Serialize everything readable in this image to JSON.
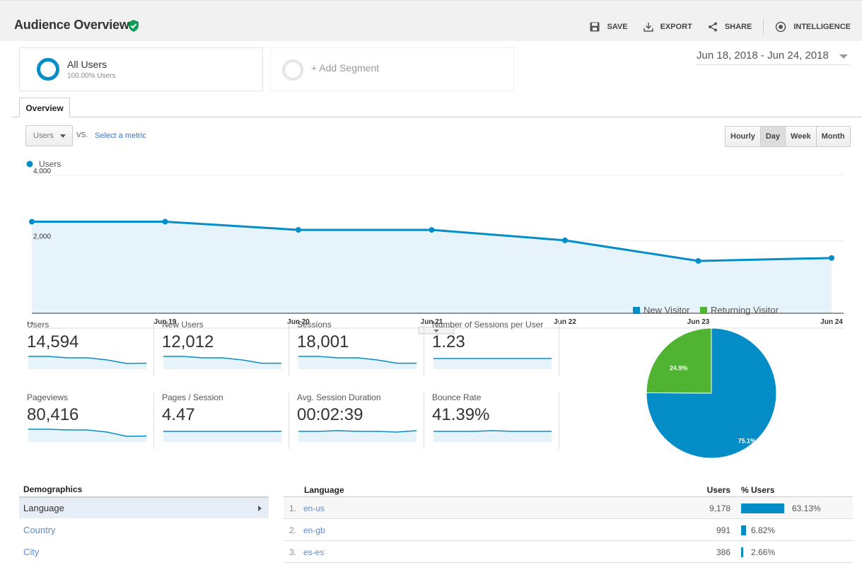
{
  "header": {
    "title": "Audience Overview",
    "actions": {
      "save": "SAVE",
      "export": "EXPORT",
      "share": "SHARE",
      "intelligence": "INTELLIGENCE"
    }
  },
  "segments": {
    "all_users": {
      "title": "All Users",
      "sub": "100.00% Users"
    },
    "add_segment": "+ Add Segment"
  },
  "date_range": "Jun 18, 2018 - Jun 24, 2018",
  "tabs": [
    {
      "label": "Overview"
    }
  ],
  "chart_controls": {
    "metric": "Users",
    "vs": "VS.",
    "select_metric": "Select a metric",
    "granularity": [
      "Hourly",
      "Day",
      "Week",
      "Month"
    ],
    "active_granularity": "Day"
  },
  "colors": {
    "primary": "#058dc7",
    "secondary": "#50b432",
    "area": "#e6f3fb"
  },
  "chart_data": [
    {
      "type": "line",
      "series": [
        {
          "name": "Users",
          "values": [
            2800,
            2800,
            2550,
            2550,
            2230,
            1600,
            1690
          ]
        }
      ],
      "x": [
        "...",
        "Jun 19",
        "Jun 20",
        "Jun 21",
        "Jun 22",
        "Jun 23",
        "Jun 24"
      ],
      "y_ticks": [
        "4,000",
        "2,000"
      ],
      "ylim": [
        0,
        4000
      ],
      "legend": "top-left",
      "grid": true
    },
    {
      "type": "pie",
      "categories": [
        "New Visitor",
        "Returning Visitor"
      ],
      "values": [
        75.1,
        24.9
      ],
      "labels": [
        "75.1%",
        "24.9%"
      ],
      "colors": [
        "#058dc7",
        "#50b432"
      ],
      "legend": "top"
    }
  ],
  "scorecards": [
    {
      "label": "Users",
      "value": "14,594",
      "trend": [
        0.6,
        0.6,
        0.5,
        0.5,
        0.35,
        0.1,
        0.12
      ]
    },
    {
      "label": "New Users",
      "value": "12,012",
      "trend": [
        0.6,
        0.6,
        0.5,
        0.5,
        0.35,
        0.12,
        0.12
      ]
    },
    {
      "label": "Sessions",
      "value": "18,001",
      "trend": [
        0.6,
        0.6,
        0.5,
        0.5,
        0.35,
        0.12,
        0.12
      ]
    },
    {
      "label": "Number of Sessions per User",
      "value": "1.23",
      "trend": [
        0.45,
        0.45,
        0.45,
        0.45,
        0.45,
        0.45,
        0.45
      ]
    },
    {
      "label": "Pageviews",
      "value": "80,416",
      "trend": [
        0.6,
        0.6,
        0.55,
        0.55,
        0.4,
        0.1,
        0.12
      ]
    },
    {
      "label": "Pages / Session",
      "value": "4.47",
      "trend": [
        0.45,
        0.45,
        0.45,
        0.45,
        0.45,
        0.45,
        0.45
      ]
    },
    {
      "label": "Avg. Session Duration",
      "value": "00:02:39",
      "trend": [
        0.45,
        0.45,
        0.5,
        0.45,
        0.45,
        0.4,
        0.5
      ]
    },
    {
      "label": "Bounce Rate",
      "value": "41.39%",
      "trend": [
        0.45,
        0.45,
        0.45,
        0.5,
        0.45,
        0.45,
        0.45
      ]
    }
  ],
  "demographics": {
    "heading": "Demographics",
    "items": [
      {
        "label": "Language"
      },
      {
        "label": "Country"
      },
      {
        "label": "City"
      }
    ]
  },
  "language_table": {
    "headers": {
      "language": "Language",
      "users": "Users",
      "pct": "% Users"
    },
    "rows": [
      {
        "num": "1.",
        "lang": "en-us",
        "users": "9,178",
        "pct": "63.13%",
        "share": 63.13
      },
      {
        "num": "2.",
        "lang": "en-gb",
        "users": "991",
        "pct": "6.82%",
        "share": 6.82
      },
      {
        "num": "3.",
        "lang": "es-es",
        "users": "386",
        "pct": "2.66%",
        "share": 2.66
      }
    ]
  }
}
